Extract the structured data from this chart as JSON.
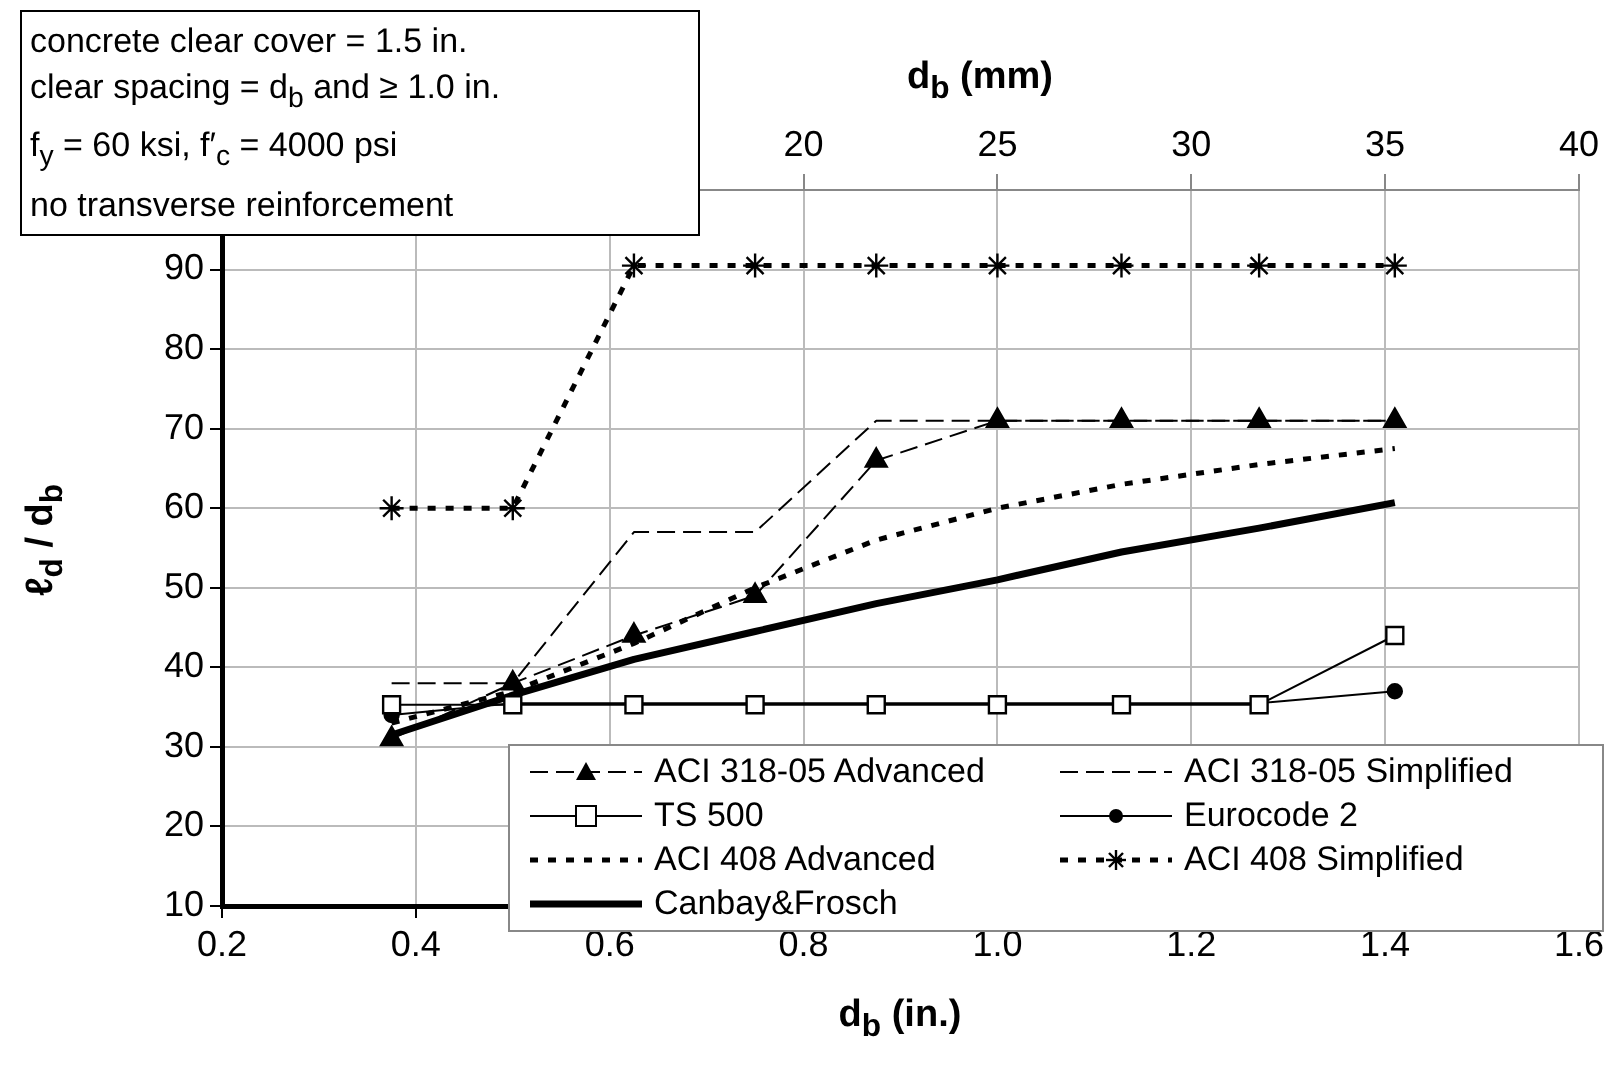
{
  "chart_data": {
    "type": "line",
    "xlabel": "d$_{b}$ (in.)",
    "x2label": "d$_{b}$ (mm)",
    "ylabel": "ℓ$_{d}$ / d$_{b}$",
    "annotations": [
      "concrete clear cover = 1.5 in.",
      "clear spacing = d$_{b}$ and ≥ 1.0 in.",
      "f$_{y}$ = 60 ksi,   f′$_{c}$ = 4000 psi",
      "no transverse reinforcement"
    ],
    "x": [
      0.375,
      0.5,
      0.625,
      0.75,
      0.875,
      1.0,
      1.128,
      1.27,
      1.41
    ],
    "series": [
      {
        "name": "ACI 318-05 Advanced",
        "color": "#000000",
        "marker": "triangle",
        "line_style": "dashed",
        "values": [
          31,
          38,
          44,
          49,
          66,
          71,
          71,
          71,
          71
        ]
      },
      {
        "name": "ACI 318-05 Simplified",
        "color": "#000000",
        "line_style": "dashed",
        "values": [
          38,
          38,
          57,
          57,
          71,
          71,
          71,
          71,
          71
        ]
      },
      {
        "name": "TS 500",
        "color": "#000000",
        "marker": "square",
        "line_style": "solid",
        "values": [
          35.3,
          35.3,
          35.3,
          35.3,
          35.3,
          35.3,
          35.3,
          35.3,
          44
        ]
      },
      {
        "name": "Eurocode 2",
        "color": "#000000",
        "marker": "circle",
        "line_style": "solid",
        "values": [
          34,
          35.5,
          35.5,
          35.5,
          35.5,
          35.5,
          35.5,
          35.5,
          37
        ]
      },
      {
        "name": "ACI 408 Advanced",
        "color": "#000000",
        "line_style": "dotted",
        "values": [
          33,
          37,
          43,
          50,
          56,
          60,
          63,
          65.5,
          67.5
        ]
      },
      {
        "name": "ACI 408 Simplified",
        "color": "#000000",
        "marker": "cross",
        "line_style": "dotted",
        "values": [
          60,
          60,
          90.5,
          90.5,
          90.5,
          90.5,
          90.5,
          90.5,
          90.5
        ]
      },
      {
        "name": "Canbay&Frosch",
        "color": "#000000",
        "line_style": "solid",
        "values": [
          31.5,
          36.5,
          41,
          44.5,
          48,
          51,
          54.5,
          57.5,
          60.7
        ]
      }
    ],
    "xlim": [
      0.2,
      1.6
    ],
    "xticks": [
      {
        "value": 0.2,
        "label": "0.2"
      },
      {
        "value": 0.4,
        "label": "0.4"
      },
      {
        "value": 0.6,
        "label": "0.6"
      },
      {
        "value": 0.8,
        "label": "0.8"
      },
      {
        "value": 1.0,
        "label": "1.0"
      },
      {
        "value": 1.2,
        "label": "1.2"
      },
      {
        "value": 1.4,
        "label": "1.4"
      },
      {
        "value": 1.6,
        "label": "1.6"
      }
    ],
    "x2lim": [
      5,
      40
    ],
    "x2ticks": [
      20,
      25,
      30,
      35,
      40
    ],
    "ylim": [
      10,
      100
    ],
    "yticks": [
      10,
      20,
      30,
      40,
      50,
      60,
      70,
      80,
      90
    ],
    "grid": true,
    "legend": "bottom right"
  }
}
